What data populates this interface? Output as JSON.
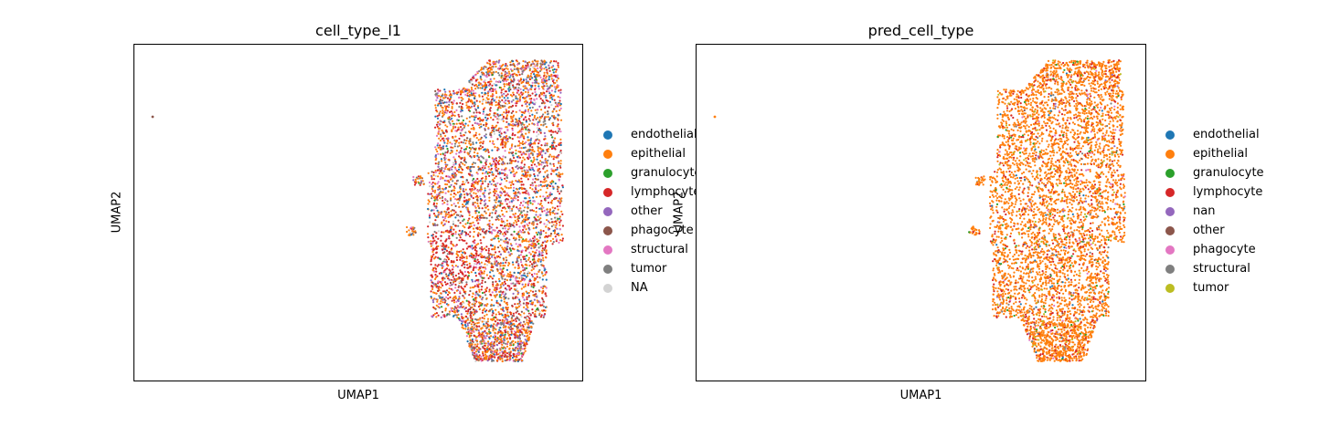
{
  "chart_data": [
    {
      "type": "scatter",
      "title": "cell_type_l1",
      "xlabel": "UMAP1",
      "ylabel": "UMAP2",
      "grid": false,
      "legend_placement": "right",
      "legend": [
        {
          "label": "endothelial",
          "color": "#1f77b4"
        },
        {
          "label": "epithelial",
          "color": "#ff7f0e"
        },
        {
          "label": "granulocyte",
          "color": "#2ca02c"
        },
        {
          "label": "lymphocyte",
          "color": "#d62728"
        },
        {
          "label": "other",
          "color": "#9467bd"
        },
        {
          "label": "phagocyte",
          "color": "#8c564b"
        },
        {
          "label": "structural",
          "color": "#e377c2"
        },
        {
          "label": "tumor",
          "color": "#7f7f7f"
        },
        {
          "label": "NA",
          "color": "#d3d3d3"
        }
      ],
      "mix": [
        0.07,
        0.38,
        0.02,
        0.22,
        0.06,
        0.05,
        0.1,
        0.08,
        0.02
      ]
    },
    {
      "type": "scatter",
      "title": "pred_cell_type",
      "xlabel": "UMAP1",
      "ylabel": "UMAP2",
      "grid": false,
      "legend_placement": "right",
      "legend": [
        {
          "label": "endothelial",
          "color": "#1f77b4"
        },
        {
          "label": "epithelial",
          "color": "#ff7f0e"
        },
        {
          "label": "granulocyte",
          "color": "#2ca02c"
        },
        {
          "label": "lymphocyte",
          "color": "#d62728"
        },
        {
          "label": "nan",
          "color": "#9467bd"
        },
        {
          "label": "other",
          "color": "#8c564b"
        },
        {
          "label": "phagocyte",
          "color": "#e377c2"
        },
        {
          "label": "structural",
          "color": "#7f7f7f"
        },
        {
          "label": "tumor",
          "color": "#bcbd22"
        }
      ],
      "mix": [
        0.01,
        0.8,
        0.02,
        0.12,
        0.005,
        0.005,
        0.01,
        0.01,
        0.04
      ]
    }
  ]
}
